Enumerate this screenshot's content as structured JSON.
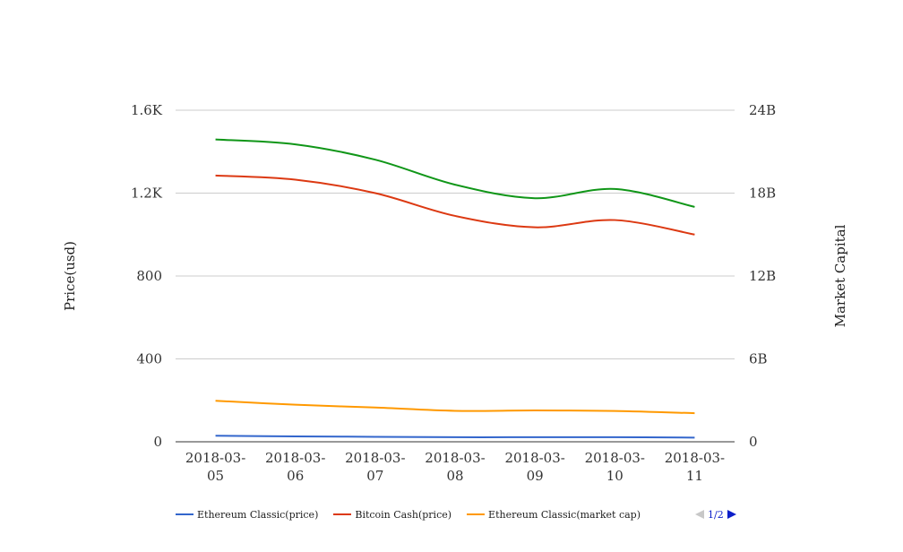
{
  "chart_data": {
    "type": "line",
    "categories": [
      "2018-03-05",
      "2018-03-06",
      "2018-03-07",
      "2018-03-08",
      "2018-03-09",
      "2018-03-10",
      "2018-03-11"
    ],
    "category_lines": [
      [
        "2018-03-",
        "05"
      ],
      [
        "2018-03-",
        "06"
      ],
      [
        "2018-03-",
        "07"
      ],
      [
        "2018-03-",
        "08"
      ],
      [
        "2018-03-",
        "09"
      ],
      [
        "2018-03-",
        "10"
      ],
      [
        "2018-03-",
        "11"
      ]
    ],
    "ylabel_left": "Price(usd)",
    "ylabel_right": "Market Capital",
    "ylim_left": [
      0,
      1600
    ],
    "ylim_right": [
      0,
      24000000000
    ],
    "yticks_left": [
      {
        "value": 0,
        "label": "0"
      },
      {
        "value": 400,
        "label": "400"
      },
      {
        "value": 800,
        "label": "800"
      },
      {
        "value": 1200,
        "label": "1.2K"
      },
      {
        "value": 1600,
        "label": "1.6K"
      }
    ],
    "yticks_right": [
      {
        "value": 0,
        "label": "0"
      },
      {
        "value": 6000000000,
        "label": "6B"
      },
      {
        "value": 12000000000,
        "label": "12B"
      },
      {
        "value": 18000000000,
        "label": "18B"
      },
      {
        "value": 24000000000,
        "label": "24B"
      }
    ],
    "grid": true,
    "legend_position": "bottom-left",
    "series": [
      {
        "name": "Ethereum Classic(price)",
        "axis": "left",
        "color": "#3366cc",
        "values": [
          29,
          26,
          24,
          22,
          22,
          22,
          20
        ]
      },
      {
        "name": "Bitcoin Cash(price)",
        "axis": "left",
        "color": "#dc3912",
        "values": [
          1285,
          1265,
          1200,
          1090,
          1035,
          1070,
          1000
        ]
      },
      {
        "name": "Ethereum Classic(market cap)",
        "axis": "right",
        "color": "#ff9900",
        "values": [
          2970000000,
          2680000000,
          2480000000,
          2240000000,
          2270000000,
          2230000000,
          2070000000
        ]
      },
      {
        "name": "",
        "axis": "right",
        "color": "#109618",
        "values": [
          21880000000,
          21530000000,
          20420000000,
          18610000000,
          17630000000,
          18300000000,
          17000000000
        ]
      }
    ]
  },
  "legend": {
    "items": [
      {
        "label": "Ethereum Classic(price)",
        "color": "#3366cc"
      },
      {
        "label": "Bitcoin Cash(price)",
        "color": "#dc3912"
      },
      {
        "label": "Ethereum Classic(market cap)",
        "color": "#ff9900"
      }
    ]
  },
  "pager": {
    "text": "1/2"
  }
}
